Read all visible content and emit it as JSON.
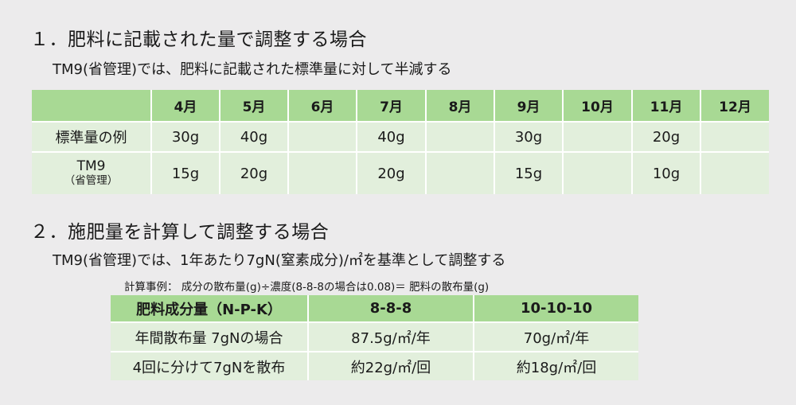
{
  "section1": {
    "heading": "１．肥料に記載された量で調整する場合",
    "description": "TM9(省管理)では、肥料に記載された標準量に対して半減する",
    "table": {
      "corner": "",
      "months": [
        "4月",
        "5月",
        "6月",
        "7月",
        "8月",
        "9月",
        "10月",
        "11月",
        "12月"
      ],
      "standard_row": {
        "label": "標準量の例",
        "values": [
          "30g",
          "40g",
          "",
          "40g",
          "",
          "30g",
          "",
          "20g",
          ""
        ]
      },
      "tm9_row": {
        "label_line1": "TM9",
        "label_line2": "（省管理）",
        "values": [
          "15g",
          "20g",
          "",
          "20g",
          "",
          "15g",
          "",
          "10g",
          ""
        ]
      }
    }
  },
  "section2": {
    "heading": "２．施肥量を計算して調整する場合",
    "description": "TM9(省管理)では、1年あたり7gN(窒素成分)/㎡を基準として調整する",
    "formula": "計算事例：  成分の散布量(g)÷濃度(8-8-8の場合は0.08)＝ 肥料の散布量(g)",
    "table": {
      "headers": [
        "肥料成分量（N-P-K）",
        "8-8-8",
        "10-10-10"
      ],
      "rows": [
        [
          "年間散布量 7gNの場合",
          "87.5g/㎡/年",
          "70g/㎡/年"
        ],
        [
          "4回に分けて7gNを散布",
          "約22g/㎡/回",
          "約18g/㎡/回"
        ]
      ]
    }
  }
}
